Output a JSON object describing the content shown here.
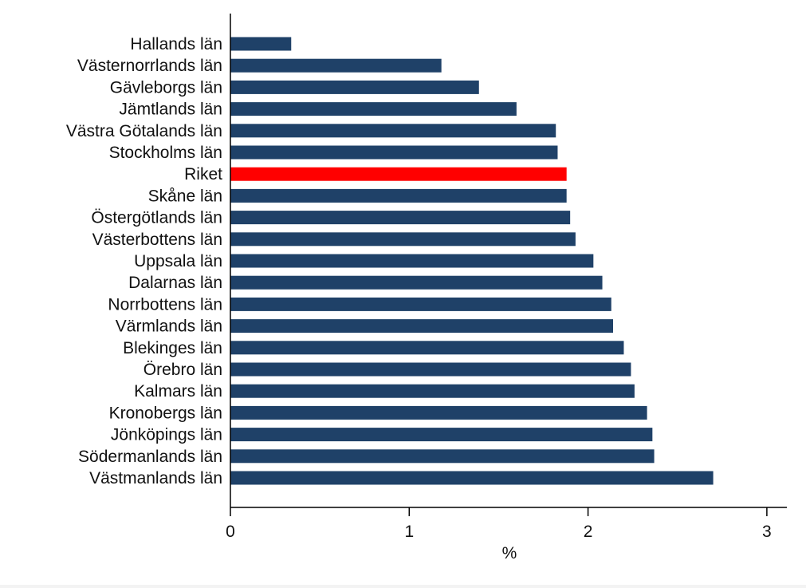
{
  "chart_data": {
    "type": "bar",
    "orientation": "horizontal",
    "categories": [
      "Hallands län",
      "Västernorrlands län",
      "Gävleborgs län",
      "Jämtlands län",
      "Västra Götalands län",
      "Stockholms län",
      "Riket",
      "Skåne län",
      "Östergötlands län",
      "Västerbottens län",
      "Uppsala län",
      "Dalarnas län",
      "Norrbottens län",
      "Värmlands län",
      "Blekinges län",
      "Örebro län",
      "Kalmars län",
      "Kronobergs län",
      "Jönköpings län",
      "Södermanlands län",
      "Västmanlands län"
    ],
    "values": [
      0.34,
      1.18,
      1.39,
      1.6,
      1.82,
      1.83,
      1.88,
      1.88,
      1.9,
      1.93,
      2.03,
      2.08,
      2.13,
      2.14,
      2.2,
      2.24,
      2.26,
      2.33,
      2.36,
      2.37,
      2.7
    ],
    "highlight_category": "Riket",
    "xlabel": "%",
    "ylabel": "",
    "xlim": [
      0,
      3.1
    ],
    "xticks": [
      0,
      1,
      2,
      3
    ],
    "xtick_labels": [
      "0",
      "1",
      "2",
      "3"
    ],
    "grid": false,
    "legend": "none",
    "colors": {
      "bar": "#1f4168",
      "highlight": "#ff0000",
      "axis": "#000000"
    }
  }
}
